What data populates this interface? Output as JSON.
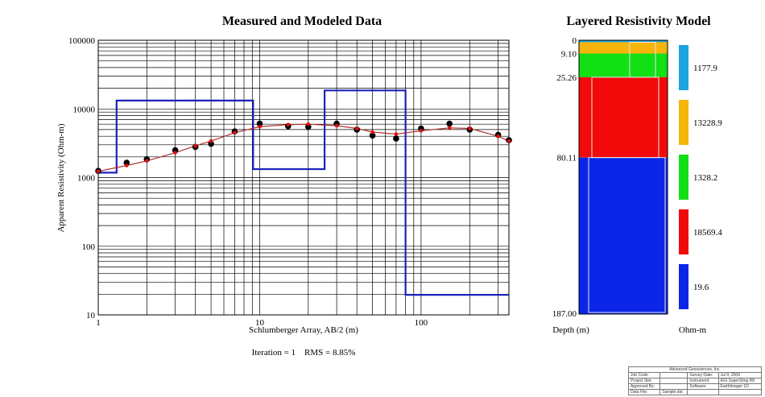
{
  "chart_data": [
    {
      "type": "scatter",
      "title": "Measured and Modeled Data",
      "xlabel": "Schlumberger Array, AB/2 (m)",
      "ylabel": "Apparent Resistivity (Ohm-m)",
      "x_scale": "log",
      "y_scale": "log",
      "xlim": [
        1,
        350
      ],
      "ylim": [
        10,
        100000
      ],
      "x_tick_labels": [
        {
          "value": 1,
          "label": "1"
        },
        {
          "value": 10,
          "label": "10"
        },
        {
          "value": 100,
          "label": "100"
        }
      ],
      "y_tick_labels": [
        {
          "value": 10,
          "label": "10"
        },
        {
          "value": 100,
          "label": "100"
        },
        {
          "value": 1000,
          "label": "1000"
        },
        {
          "value": 10000,
          "label": "10000"
        },
        {
          "value": 100000,
          "label": "100000"
        }
      ],
      "grid": true,
      "measured": {
        "x": [
          1,
          1.5,
          2,
          3,
          4,
          5,
          7,
          10,
          15,
          20,
          30,
          40,
          50,
          70,
          100,
          150,
          200,
          300,
          350
        ],
        "y": [
          1250,
          1650,
          1850,
          2500,
          2800,
          3100,
          4700,
          6100,
          5600,
          5500,
          6100,
          5000,
          4100,
          3700,
          5200,
          6100,
          5000,
          4200,
          3500
        ]
      },
      "modeled": {
        "x": [
          1,
          1.5,
          2,
          3,
          4,
          5,
          7,
          10,
          15,
          20,
          30,
          40,
          50,
          70,
          100,
          150,
          200,
          300,
          350
        ],
        "y": [
          1230,
          1500,
          1750,
          2300,
          2900,
          3400,
          4500,
          5500,
          5900,
          6000,
          5700,
          5200,
          4600,
          4300,
          4800,
          5300,
          5200,
          4000,
          3400
        ]
      },
      "model_steps": {
        "depth": [
          0,
          1.3,
          9.1,
          25.26,
          80.11
        ],
        "resistivity": [
          1177.9,
          13228.9,
          1328.2,
          18569.4,
          19.6
        ]
      },
      "annotation": "Iteration = 1    RMS = 8.85%"
    },
    {
      "type": "bar",
      "title": "Layered Resistivity Model",
      "xlabel": "Ohm-m",
      "ylabel": "Depth (m)",
      "depth_labels": [
        "0",
        "9.10",
        "25.26",
        "80.11",
        "187.00"
      ],
      "layers": [
        {
          "top": 0,
          "bottom": 1.3,
          "resistivity": "1177.9",
          "color": "#1aa5e0"
        },
        {
          "top": 1.3,
          "bottom": 9.1,
          "resistivity": "13228.9",
          "color": "#f5b50a"
        },
        {
          "top": 9.1,
          "bottom": 25.26,
          "resistivity": "1328.2",
          "color": "#11e015"
        },
        {
          "top": 25.26,
          "bottom": 80.11,
          "resistivity": "18569.4",
          "color": "#f20a0a"
        },
        {
          "top": 80.11,
          "bottom": 187.0,
          "resistivity": "19.6",
          "color": "#0b26e8"
        }
      ]
    }
  ],
  "colors": {
    "measured": "#000000",
    "modeled_line": "#b33030",
    "modeled_points": "#e01010",
    "model_steps": "#1c22b8"
  },
  "info_box": {
    "company": "Advanced Geosciences, Inc.",
    "rows": [
      [
        "Job Code:",
        "",
        "Survey Date:",
        "Jul 9, 2009"
      ],
      [
        "Project Site:",
        "",
        "Instrument:",
        "AGI SuperSting R8"
      ],
      [
        "Approved By:",
        "",
        "Software:",
        "EarthImager 1D"
      ],
      [
        "Data File:",
        "Sample.dat",
        "",
        ""
      ]
    ]
  }
}
